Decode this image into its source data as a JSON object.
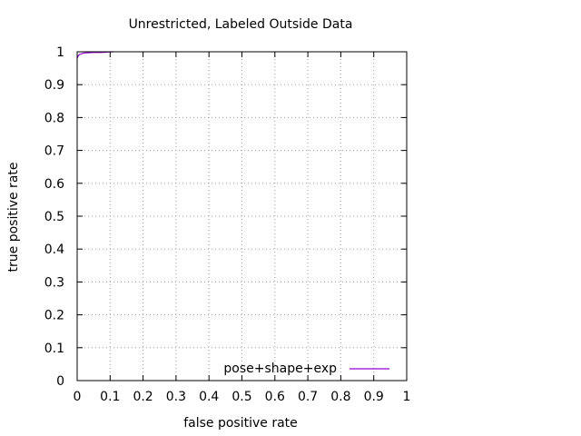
{
  "chart_data": {
    "type": "line",
    "title": "Unrestricted, Labeled Outside Data",
    "xlabel": "false positive rate",
    "ylabel": "true positive rate",
    "xlim": [
      0,
      1
    ],
    "ylim": [
      0,
      1
    ],
    "xticks": [
      "0",
      "0.1",
      "0.2",
      "0.3",
      "0.4",
      "0.5",
      "0.6",
      "0.7",
      "0.8",
      "0.9",
      "1"
    ],
    "yticks": [
      "0",
      "0.1",
      "0.2",
      "0.3",
      "0.4",
      "0.5",
      "0.6",
      "0.7",
      "0.8",
      "0.9",
      "1"
    ],
    "grid": true,
    "legend_position": "bottom-right",
    "series": [
      {
        "name": "pose+shape+exp",
        "color": "#9400d3",
        "x": [
          0,
          0.002,
          0.005,
          0.01,
          0.02,
          0.03,
          0.05,
          0.07,
          0.09,
          0.1,
          0.11
        ],
        "y": [
          0.98,
          0.985,
          0.99,
          0.993,
          0.996,
          0.997,
          0.998,
          0.998,
          0.999,
          1.0,
          1.0
        ]
      }
    ]
  }
}
